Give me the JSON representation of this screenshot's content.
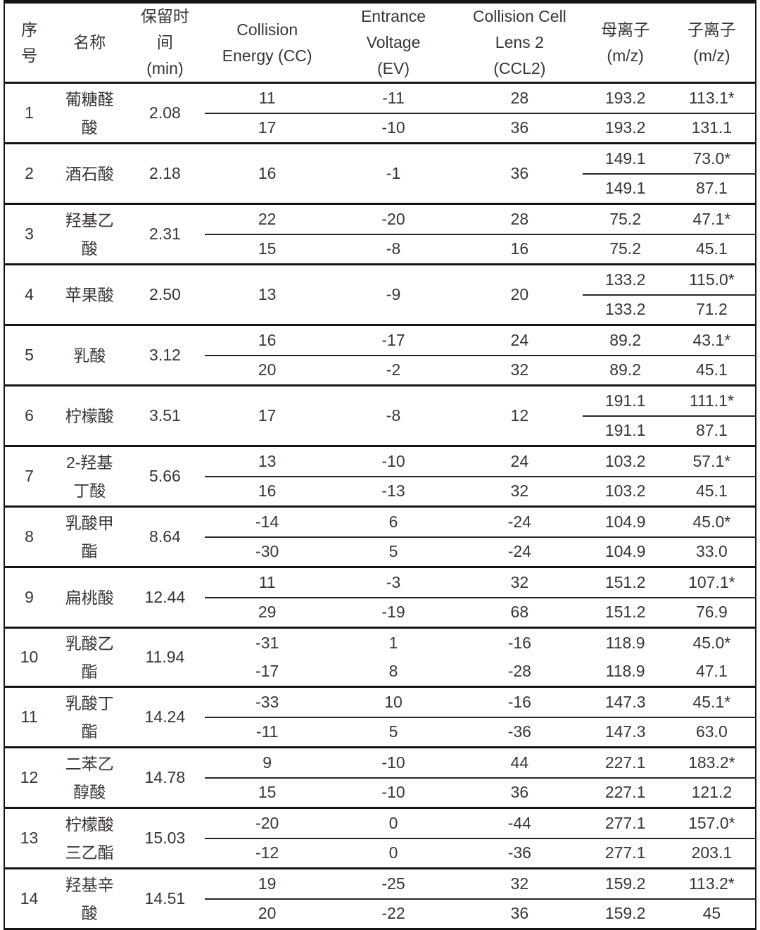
{
  "table": {
    "headers": {
      "no": "序\n号",
      "name": "名称",
      "rt": "保留时\n间\n(min)",
      "ce": "Collision\nEnergy (CC)",
      "ev": "Entrance\nVoltage\n(EV)",
      "ccl2": "Collision Cell\nLens 2\n(CCL2)",
      "parent": "母离子\n(m/z)",
      "daughter": "子离子\n(m/z)"
    },
    "rows": [
      {
        "no": "1",
        "name": "葡糖醛\n酸",
        "rt": "2.08",
        "merged": false,
        "divider": true,
        "sub": [
          {
            "ce": "11",
            "ev": "-11",
            "ccl2": "28",
            "parent": "193.2",
            "daughter": "113.1*"
          },
          {
            "ce": "17",
            "ev": "-10",
            "ccl2": "36",
            "parent": "193.2",
            "daughter": "131.1"
          }
        ]
      },
      {
        "no": "2",
        "name": "酒石酸",
        "rt": "2.18",
        "merged": true,
        "divider": true,
        "ce": "16",
        "ev": "-1",
        "ccl2": "36",
        "sub": [
          {
            "parent": "149.1",
            "daughter": "73.0*"
          },
          {
            "parent": "149.1",
            "daughter": "87.1"
          }
        ]
      },
      {
        "no": "3",
        "name": "羟基乙\n酸",
        "rt": "2.31",
        "merged": false,
        "divider": true,
        "sub": [
          {
            "ce": "22",
            "ev": "-20",
            "ccl2": "28",
            "parent": "75.2",
            "daughter": "47.1*"
          },
          {
            "ce": "15",
            "ev": "-8",
            "ccl2": "16",
            "parent": "75.2",
            "daughter": "45.1"
          }
        ]
      },
      {
        "no": "4",
        "name": "苹果酸",
        "rt": "2.50",
        "merged": true,
        "divider": true,
        "ce": "13",
        "ev": "-9",
        "ccl2": "20",
        "sub": [
          {
            "parent": "133.2",
            "daughter": "115.0*"
          },
          {
            "parent": "133.2",
            "daughter": "71.2"
          }
        ]
      },
      {
        "no": "5",
        "name": "乳酸",
        "rt": "3.12",
        "merged": false,
        "divider": true,
        "sub": [
          {
            "ce": "16",
            "ev": "-17",
            "ccl2": "24",
            "parent": "89.2",
            "daughter": "43.1*"
          },
          {
            "ce": "20",
            "ev": "-2",
            "ccl2": "32",
            "parent": "89.2",
            "daughter": "45.1"
          }
        ]
      },
      {
        "no": "6",
        "name": "柠檬酸",
        "rt": "3.51",
        "merged": true,
        "divider": true,
        "ce": "17",
        "ev": "-8",
        "ccl2": "12",
        "sub": [
          {
            "parent": "191.1",
            "daughter": "111.1*"
          },
          {
            "parent": "191.1",
            "daughter": "87.1"
          }
        ]
      },
      {
        "no": "7",
        "name": "2-羟基\n丁酸",
        "rt": "5.66",
        "merged": false,
        "divider": true,
        "sub": [
          {
            "ce": "13",
            "ev": "-10",
            "ccl2": "24",
            "parent": "103.2",
            "daughter": "57.1*"
          },
          {
            "ce": "16",
            "ev": "-13",
            "ccl2": "32",
            "parent": "103.2",
            "daughter": "45.1"
          }
        ]
      },
      {
        "no": "8",
        "name": "乳酸甲\n酯",
        "rt": "8.64",
        "merged": false,
        "divider": true,
        "sub": [
          {
            "ce": "-14",
            "ev": "6",
            "ccl2": "-24",
            "parent": "104.9",
            "daughter": "45.0*"
          },
          {
            "ce": "-30",
            "ev": "5",
            "ccl2": "-24",
            "parent": "104.9",
            "daughter": "33.0"
          }
        ]
      },
      {
        "no": "9",
        "name": "扁桃酸",
        "rt": "12.44",
        "merged": false,
        "divider": true,
        "sub": [
          {
            "ce": "11",
            "ev": "-3",
            "ccl2": "32",
            "parent": "151.2",
            "daughter": "107.1*"
          },
          {
            "ce": "29",
            "ev": "-19",
            "ccl2": "68",
            "parent": "151.2",
            "daughter": "76.9"
          }
        ]
      },
      {
        "no": "10",
        "name": "乳酸乙\n酯",
        "rt": "11.94",
        "merged": false,
        "divider": false,
        "sub": [
          {
            "ce": "-31",
            "ev": "1",
            "ccl2": "-16",
            "parent": "118.9",
            "daughter": "45.0*"
          },
          {
            "ce": "-17",
            "ev": "8",
            "ccl2": "-28",
            "parent": "118.9",
            "daughter": "47.1"
          }
        ]
      },
      {
        "no": "11",
        "name": "乳酸丁\n酯",
        "rt": "14.24",
        "merged": false,
        "divider": true,
        "sub": [
          {
            "ce": "-33",
            "ev": "10",
            "ccl2": "-16",
            "parent": "147.3",
            "daughter": "45.1*"
          },
          {
            "ce": "-11",
            "ev": "5",
            "ccl2": "-36",
            "parent": "147.3",
            "daughter": "63.0"
          }
        ]
      },
      {
        "no": "12",
        "name": "二苯乙\n醇酸",
        "rt": "14.78",
        "merged": false,
        "divider": true,
        "sub": [
          {
            "ce": "9",
            "ev": "-10",
            "ccl2": "44",
            "parent": "227.1",
            "daughter": "183.2*"
          },
          {
            "ce": "15",
            "ev": "-10",
            "ccl2": "36",
            "parent": "227.1",
            "daughter": "121.2"
          }
        ]
      },
      {
        "no": "13",
        "name": "柠檬酸\n三乙酯",
        "rt": "15.03",
        "merged": false,
        "divider": true,
        "sub": [
          {
            "ce": "-20",
            "ev": "0",
            "ccl2": "-44",
            "parent": "277.1",
            "daughter": "157.0*"
          },
          {
            "ce": "-12",
            "ev": "0",
            "ccl2": "-36",
            "parent": "277.1",
            "daughter": "203.1"
          }
        ]
      },
      {
        "no": "14",
        "name": "羟基辛\n酸",
        "rt": "14.51",
        "merged": false,
        "divider": true,
        "sub": [
          {
            "ce": "19",
            "ev": "-25",
            "ccl2": "32",
            "parent": "159.2",
            "daughter": "113.2*"
          },
          {
            "ce": "20",
            "ev": "-22",
            "ccl2": "36",
            "parent": "159.2",
            "daughter": "45"
          }
        ]
      }
    ]
  }
}
